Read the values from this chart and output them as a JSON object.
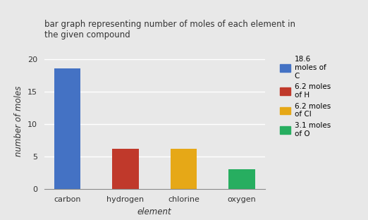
{
  "categories": [
    "carbon",
    "hydrogen",
    "chlorine",
    "oxygen"
  ],
  "values": [
    18.6,
    6.2,
    6.2,
    3.1
  ],
  "bar_colors": [
    "#4472c4",
    "#c0392b",
    "#e6a817",
    "#27ae60"
  ],
  "title": "bar graph representing number of moles of each element in\nthe given compound",
  "xlabel": "element",
  "ylabel": "number of moles",
  "ylim": [
    0,
    21
  ],
  "yticks": [
    0,
    5,
    10,
    15,
    20
  ],
  "legend_labels": [
    "18.6\nmoles of\nC",
    "6.2 moles\nof H",
    "6.2 moles\nof Cl",
    "3.1 moles\nof O"
  ],
  "legend_colors": [
    "#4472c4",
    "#c0392b",
    "#e6a817",
    "#27ae60"
  ],
  "background_color": "#e8e8e8",
  "grid_color": "#ffffff",
  "title_fontsize": 8.5,
  "axis_label_fontsize": 8.5,
  "tick_fontsize": 8,
  "legend_fontsize": 7.5,
  "bar_width": 0.45
}
